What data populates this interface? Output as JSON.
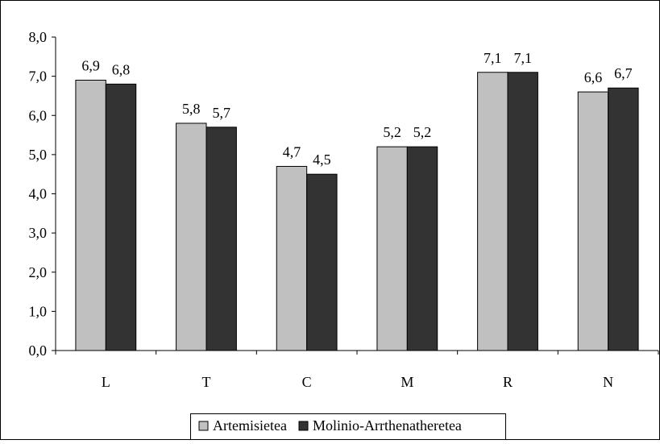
{
  "chart_data": {
    "type": "bar",
    "title": "",
    "xlabel": "",
    "ylabel": "",
    "categories": [
      "L",
      "T",
      "C",
      "M",
      "R",
      "N"
    ],
    "series": [
      {
        "name": "Artemisietea",
        "values": [
          6.9,
          5.8,
          4.7,
          5.2,
          7.1,
          6.6
        ],
        "labels": [
          "6,9",
          "5,8",
          "4,7",
          "5,2",
          "7,1",
          "6,6"
        ],
        "color": "#c0c0c0"
      },
      {
        "name": "Molinio-Arrthenatheretea",
        "values": [
          6.8,
          5.7,
          4.5,
          5.2,
          7.1,
          6.7
        ],
        "labels": [
          "6,8",
          "5,7",
          "4,5",
          "5,2",
          "7,1",
          "6,7"
        ],
        "color": "#333333"
      }
    ],
    "ylim": [
      0,
      8
    ],
    "yticks": [
      0,
      1,
      2,
      3,
      4,
      5,
      6,
      7,
      8
    ],
    "ytick_labels": [
      "0,0",
      "1,0",
      "2,0",
      "3,0",
      "4,0",
      "5,0",
      "6,0",
      "7,0",
      "8,0"
    ],
    "grid": false,
    "legend_position": "bottom-center"
  }
}
